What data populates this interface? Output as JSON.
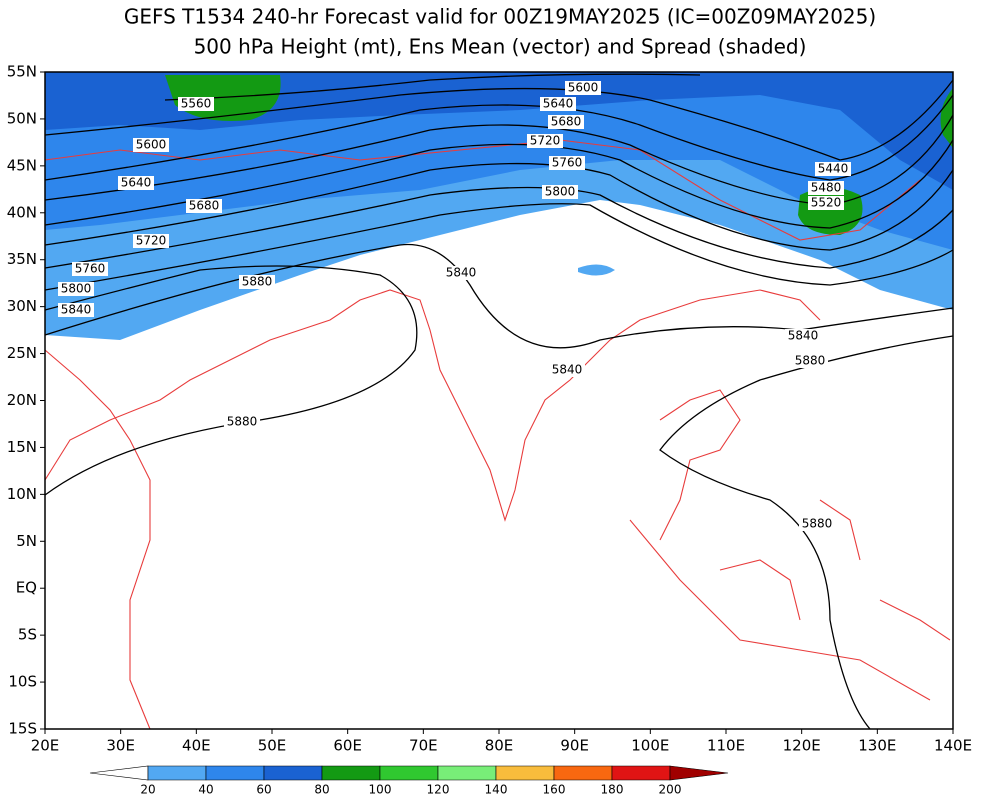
{
  "title": [
    "GEFS T1534 240-hr Forecast valid for 00Z19MAY2025 (IC=00Z09MAY2025)",
    "500 hPa Height (mt), Ens Mean (vector) and Spread (shaded)"
  ],
  "map": {
    "lon_labels": [
      "20E",
      "30E",
      "40E",
      "50E",
      "60E",
      "70E",
      "80E",
      "90E",
      "100E",
      "110E",
      "120E",
      "130E",
      "140E"
    ],
    "lat_labels": [
      "55N",
      "50N",
      "45N",
      "40N",
      "35N",
      "30N",
      "25N",
      "20N",
      "15N",
      "10N",
      "5N",
      "EQ",
      "5S",
      "10S",
      "15S"
    ],
    "contour_labels": [
      5600,
      5640,
      5680,
      5720,
      5760,
      5800,
      5560,
      5600,
      5640,
      5680,
      5720,
      5760,
      5800,
      5840,
      5880,
      5840,
      5440,
      5480,
      5520,
      5840,
      5880,
      5840,
      5880,
      5880
    ]
  },
  "colorbar": {
    "levels": [
      20,
      40,
      60,
      80,
      100,
      120,
      140,
      160,
      180,
      200
    ],
    "colors": [
      "#ffffff",
      "#52a8f2",
      "#2e86ec",
      "#1a62d2",
      "#139a13",
      "#30c830",
      "#78ee78",
      "#f8bc3c",
      "#f86810",
      "#e01414",
      "#a00000"
    ]
  }
}
